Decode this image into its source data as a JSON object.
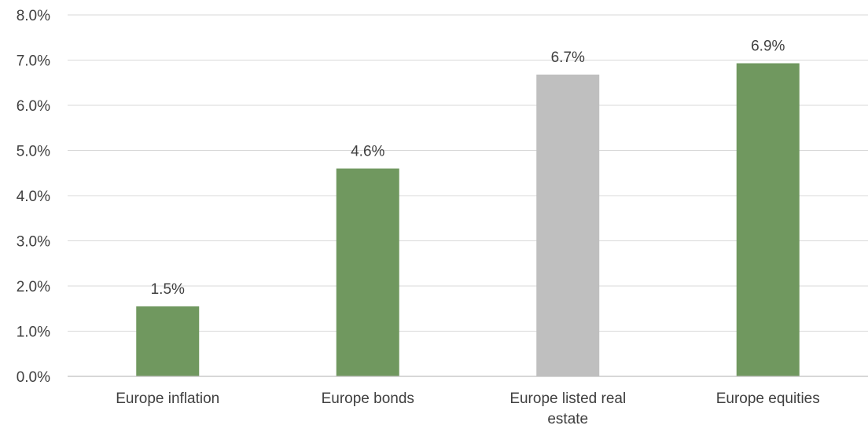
{
  "chart_data": {
    "type": "bar",
    "title": "",
    "xlabel": "",
    "ylabel": "",
    "categories": [
      [
        "Europe inflation"
      ],
      [
        "Europe bonds"
      ],
      [
        "Europe listed real",
        "estate"
      ],
      [
        "Europe equities"
      ]
    ],
    "values": [
      1.55,
      4.6,
      6.68,
      6.93
    ],
    "data_labels": [
      "1.5%",
      "4.6%",
      "6.7%",
      "6.9%"
    ],
    "bar_colors": [
      "#70985F",
      "#70985F",
      "#BFBFBF",
      "#70985F"
    ],
    "ylim": [
      0,
      8
    ],
    "yticks": [
      0,
      1,
      2,
      3,
      4,
      5,
      6,
      7,
      8
    ],
    "ytick_labels": [
      "0.0%",
      "1.0%",
      "2.0%",
      "3.0%",
      "4.0%",
      "5.0%",
      "6.0%",
      "7.0%",
      "8.0%"
    ],
    "grid": true,
    "legend": "none"
  }
}
